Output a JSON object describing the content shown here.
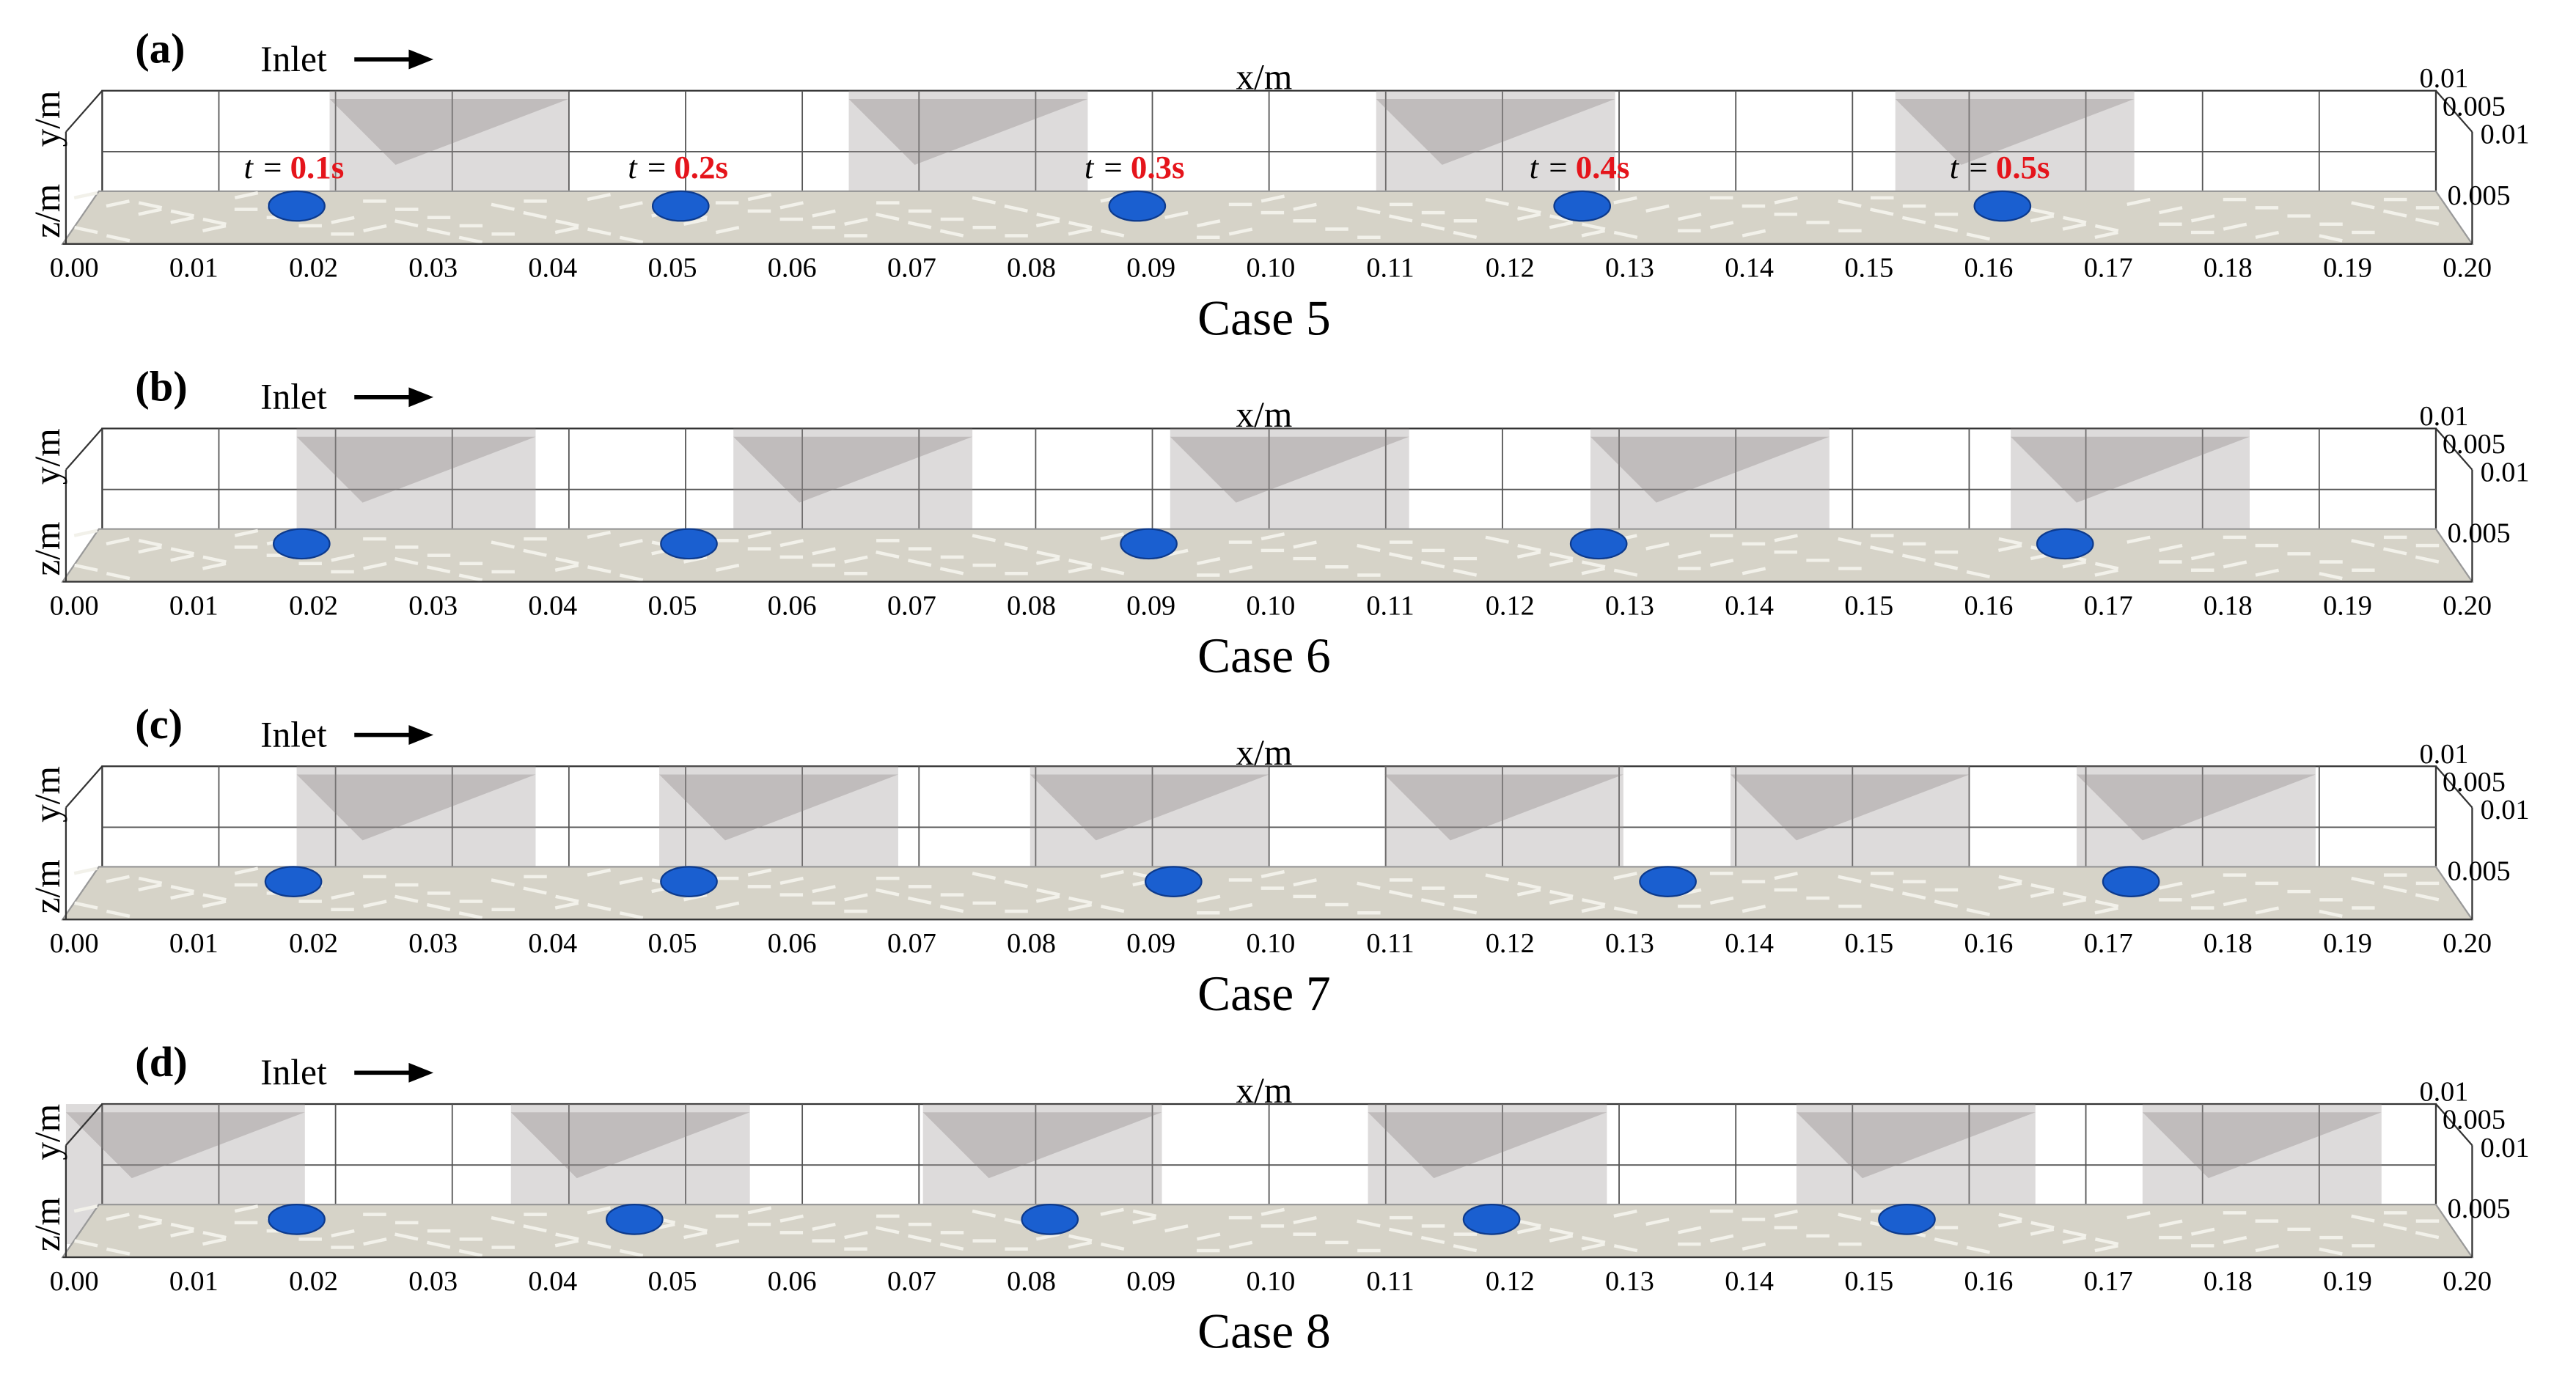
{
  "panels": [
    {
      "label": "(a)",
      "inlet": "Inlet",
      "x_axis_label": "x/m",
      "y_axis_label": "y/m",
      "z_axis_label": "z/m",
      "caption": "Case 5",
      "time_symbol": "t =",
      "times": [
        "0.1s",
        "0.2s",
        "0.3s",
        "0.4s",
        "0.5s"
      ]
    },
    {
      "label": "(b)",
      "inlet": "Inlet",
      "x_axis_label": "x/m",
      "y_axis_label": "y/m",
      "z_axis_label": "z/m",
      "caption": "Case 6"
    },
    {
      "label": "(c)",
      "inlet": "Inlet",
      "x_axis_label": "x/m",
      "y_axis_label": "y/m",
      "z_axis_label": "z/m",
      "caption": "Case 7"
    },
    {
      "label": "(d)",
      "inlet": "Inlet",
      "x_axis_label": "x/m",
      "y_axis_label": "y/m",
      "z_axis_label": "z/m",
      "caption": "Case 8"
    }
  ],
  "x_ticks": [
    "0.00",
    "0.01",
    "0.02",
    "0.03",
    "0.04",
    "0.05",
    "0.06",
    "0.07",
    "0.08",
    "0.09",
    "0.10",
    "0.11",
    "0.12",
    "0.13",
    "0.14",
    "0.15",
    "0.16",
    "0.17",
    "0.18",
    "0.19",
    "0.20"
  ],
  "side_ticks": [
    "0.01",
    "0.005",
    "0.01",
    "0.005"
  ]
}
